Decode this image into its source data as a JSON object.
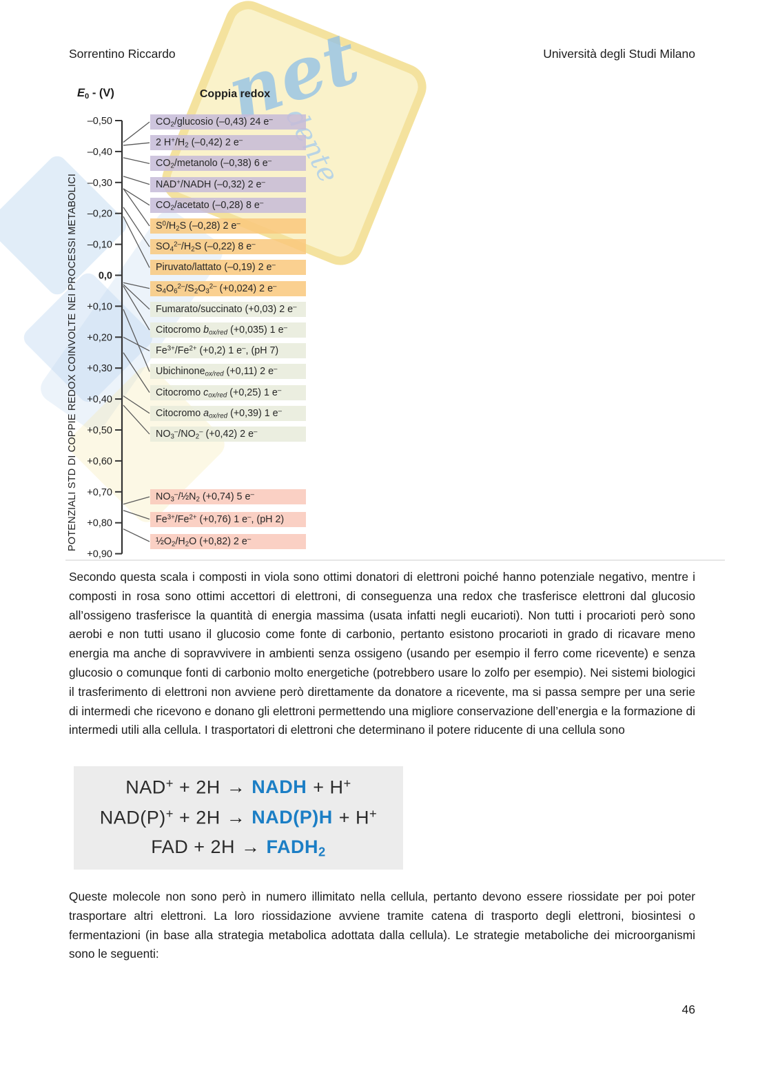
{
  "header": {
    "author": "Sorrentino Riccardo",
    "institution": "Università degli Studi Milano"
  },
  "watermark": {
    "fragments": [
      "net",
      "dente"
    ]
  },
  "figure": {
    "type": "redox-potential-scale",
    "axis_title": "*E*~0~ - (V)",
    "column_title": "Coppia redox",
    "side_label": "POTENZIALI STD DI COPPIE REDOX COINVOLTE NEI PROCESSI METABOLICI",
    "axis_ticks": [
      {
        "label": "–0,50",
        "value": -0.5
      },
      {
        "label": "–0,40",
        "value": -0.4
      },
      {
        "label": "–0,30",
        "value": -0.3
      },
      {
        "label": "–0,20",
        "value": -0.2
      },
      {
        "label": "–0,10",
        "value": -0.1
      },
      {
        "label": "0,0",
        "value": 0.0
      },
      {
        "label": "+0,10",
        "value": 0.1
      },
      {
        "label": "+0,20",
        "value": 0.2
      },
      {
        "label": "+0,30",
        "value": 0.3
      },
      {
        "label": "+0,40",
        "value": 0.4
      },
      {
        "label": "+0,50",
        "value": 0.5
      },
      {
        "label": "+0,60",
        "value": 0.6
      },
      {
        "label": "+0,70",
        "value": 0.7
      },
      {
        "label": "+0,80",
        "value": 0.8
      },
      {
        "label": "+0,90",
        "value": 0.9
      }
    ],
    "group_colors": {
      "viola": "#c6bbd8",
      "arancione": "#f9c87c",
      "verde": "#e7ebdb",
      "rosa": "#f9c8ba"
    },
    "rows": [
      {
        "label": "CO~2~/glucosio (–0,43) 24 e^–^",
        "e0": -0.43,
        "electrons": 24,
        "group": "viola"
      },
      {
        "label": "2 H^+^/H~2~ (–0,42) 2 e^–^",
        "e0": -0.42,
        "electrons": 2,
        "group": "viola"
      },
      {
        "label": "CO~2~/metanolo (–0,38) 6 e^–^",
        "e0": -0.38,
        "electrons": 6,
        "group": "viola"
      },
      {
        "label": "NAD^+^/NADH (–0,32) 2 e^–^",
        "e0": -0.32,
        "electrons": 2,
        "group": "viola"
      },
      {
        "label": "CO~2~/acetato (–0,28) 8 e^–^",
        "e0": -0.28,
        "electrons": 8,
        "group": "viola"
      },
      {
        "label": "S^0^/H~2~S (–0,28) 2 e^–^",
        "e0": -0.28,
        "electrons": 2,
        "group": "arancione"
      },
      {
        "label": "SO~4~^2–^/H~2~S (–0,22) 8 e^–^",
        "e0": -0.22,
        "electrons": 8,
        "group": "arancione"
      },
      {
        "label": "Piruvato/lattato (–0,19) 2 e^–^",
        "e0": -0.19,
        "electrons": 2,
        "group": "arancione"
      },
      {
        "label": "S~4~O~6~^2–^/S~2~O~3~^2–^ (+0,024) 2 e^–^",
        "e0": 0.024,
        "electrons": 2,
        "group": "arancione"
      },
      {
        "label": "Fumarato/succinato (+0,03) 2 e^–^",
        "e0": 0.03,
        "electrons": 2,
        "group": "verde"
      },
      {
        "label": "Citocromo *b*~*ox/red*~ (+0,035) 1 e^–^",
        "e0": 0.035,
        "electrons": 1,
        "group": "verde"
      },
      {
        "label": "Fe^3+^/Fe^2+^ (+0,2) 1 e^–^, (pH 7)",
        "e0": 0.2,
        "electrons": 1,
        "group": "verde"
      },
      {
        "label": "Ubichinone~*ox/red*~ (+0,11) 2 e^–^",
        "e0": 0.11,
        "electrons": 2,
        "group": "verde"
      },
      {
        "label": "Citocromo *c*~*ox/red*~ (+0,25) 1 e^–^",
        "e0": 0.25,
        "electrons": 1,
        "group": "verde"
      },
      {
        "label": "Citocromo *a*~*ox/red*~ (+0,39) 1 e^–^",
        "e0": 0.39,
        "electrons": 1,
        "group": "verde"
      },
      {
        "label": "NO~3~^–^/NO~2~^–^ (+0,42) 2 e^–^",
        "e0": 0.42,
        "electrons": 2,
        "group": "verde"
      },
      {
        "label": "NO~3~^–^/½N~2~ (+0,74) 5 e^–^",
        "e0": 0.74,
        "electrons": 5,
        "group": "rosa"
      },
      {
        "label": "Fe^3+^/Fe^2+^ (+0,76) 1 e^–^, (pH 2)",
        "e0": 0.76,
        "electrons": 1,
        "group": "rosa"
      },
      {
        "label": "½O~2~/H~2~O (+0,82) 2 e^–^",
        "e0": 0.82,
        "electrons": 2,
        "group": "rosa"
      }
    ]
  },
  "paragraphs": {
    "p1": "Secondo questa scala i composti in viola sono ottimi donatori di elettroni poiché hanno potenziale negativo, mentre i composti in rosa sono ottimi accettori di elettroni, di conseguenza una redox che trasferisce elettroni dal glucosio all’ossigeno trasferisce la quantità di energia massima (usata infatti negli eucarioti). Non tutti i procarioti però sono aerobi e non tutti usano il glucosio come fonte di carbonio, pertanto esistono procarioti in grado di ricavare meno energia ma anche di sopravvivere in ambienti senza ossigeno (usando per esempio il ferro come ricevente) e senza glucosio o comunque fonti di carbonio molto energetiche (potrebbero usare lo zolfo per esempio). Nei sistemi biologici il trasferimento di elettroni non avviene però direttamente da donatore a ricevente, ma si passa sempre per una serie di intermedi che ricevono e donano gli elettroni permettendo una migliore conservazione dell’energia e la formazione di intermedi utili alla cellula. I trasportatori di elettroni che determinano il potere riducente di una cellula sono",
    "p2": "Queste molecole non sono però in numero illimitato nella cellula, pertanto devono essere riossidate per poi poter trasportare altri elettroni. La loro riossidazione avviene tramite catena di trasporto degli elettroni, biosintesi o fermentazioni (in base alla strategia metabolica adottata dalla cellula). Le strategie metaboliche dei microorganismi sono le seguenti:"
  },
  "equations": {
    "highlight_color": "#1b7ec5",
    "lines": [
      {
        "lhs": "NAD^+^ + 2H",
        "arrow": "→",
        "rhs": "NADH",
        "tail": "+ H^+^"
      },
      {
        "lhs": "NAD(P)^+^ + 2H",
        "arrow": "→",
        "rhs": "NAD(P)H",
        "tail": "+ H^+^"
      },
      {
        "lhs": "FAD + 2H",
        "arrow": "→",
        "rhs": "FADH~2~",
        "tail": ""
      }
    ]
  },
  "page_number": "46"
}
